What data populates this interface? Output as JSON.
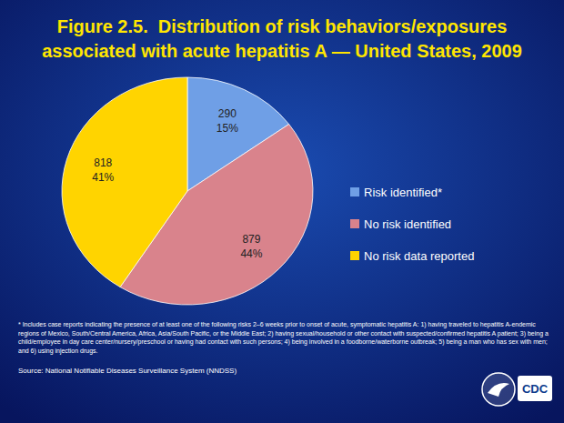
{
  "chart_data": {
    "type": "pie",
    "title": [
      "Figure 2.5.  Distribution of risk behaviors/exposures",
      "associated with acute hepatitis A — United States, 2009"
    ],
    "categories": [
      "Risk identified*",
      "No risk identified",
      "No risk data reported"
    ],
    "values": [
      15,
      44,
      41
    ],
    "value_labels": [
      "15%",
      "44%",
      "41%"
    ],
    "counts": [
      290,
      879,
      818
    ],
    "colors": [
      "#6f9fe6",
      "#d9838c",
      "#ffd400"
    ],
    "data_labels": true,
    "legend": "right",
    "footnote": "* Includes case reports indicating the presence of at least one of the following risks 2–6 weeks prior to onset of acute, symptomatic hepatitis A: 1) having traveled to hepatitis A-endemic regions of Mexico, South/Central America, Africa, Asia/South Pacific, or the Middle East; 2) having sexual/household or other contact with suspected/confirmed hepatitis A patient; 3) being a child/employee in day care center/nursery/preschool or having had contact with such persons; 4) being involved in a foodborne/waterborne outbreak; 5) being a man who has sex with men; and 6) using injection drugs.",
    "source": "Source: National Notifiable Diseases Surveillance System (NNDSS)",
    "logo_text": "CDC"
  }
}
